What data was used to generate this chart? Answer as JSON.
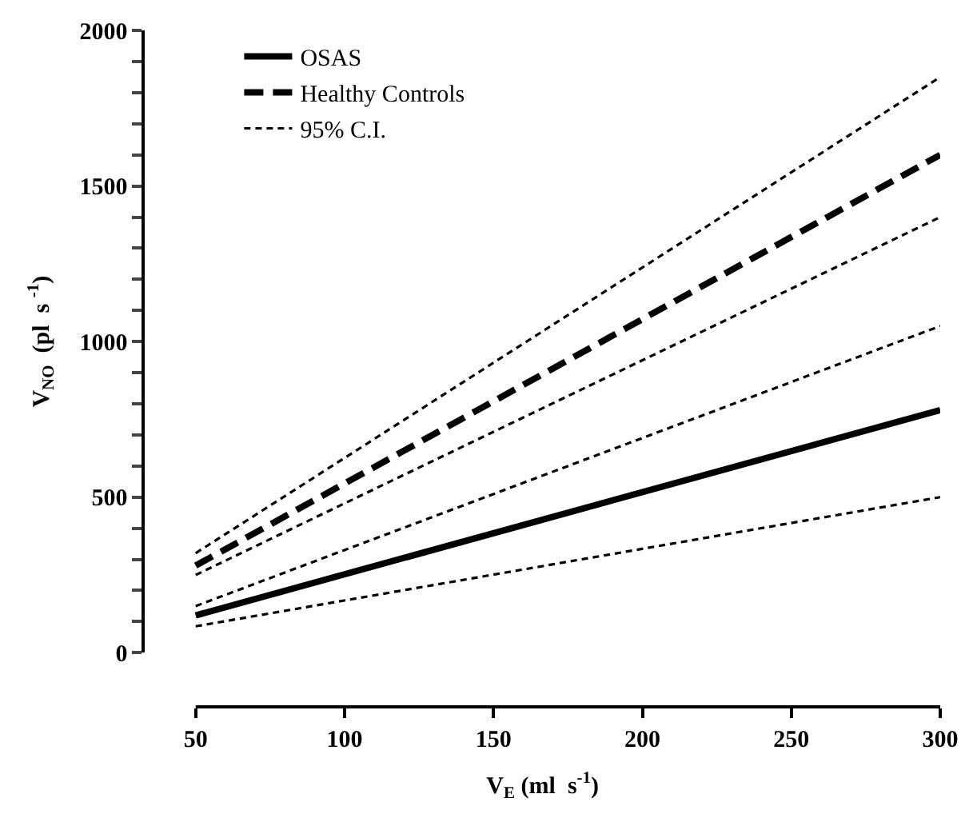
{
  "chart_data": {
    "type": "line",
    "xlabel": "V$_{E}$ (ml  s$^{-1}$)",
    "ylabel": "V$_{NO}$  (pl  s $^{-1}$)",
    "x": [
      50,
      300
    ],
    "xlim": [
      33,
      300
    ],
    "xticks": [
      50,
      100,
      150,
      200,
      250,
      300
    ],
    "ylim": [
      0,
      2000
    ],
    "yticks": [
      0,
      {
        "value": 100,
        "label": null
      },
      {
        "value": 200,
        "label": null
      },
      {
        "value": 300,
        "label": null
      },
      {
        "value": 400,
        "label": null
      },
      500,
      {
        "value": 600,
        "label": null
      },
      {
        "value": 700,
        "label": null
      },
      {
        "value": 800,
        "label": null
      },
      {
        "value": 900,
        "label": null
      },
      1000,
      {
        "value": 1100,
        "label": null
      },
      {
        "value": 1200,
        "label": null
      },
      {
        "value": 1300,
        "label": null
      },
      {
        "value": 1400,
        "label": null
      },
      1500,
      {
        "value": 1600,
        "label": null
      },
      {
        "value": 1700,
        "label": null
      },
      {
        "value": 1800,
        "label": null
      },
      {
        "value": 1900,
        "label": null
      },
      2000
    ],
    "legend": "top left",
    "marker": "none",
    "series": [
      {
        "name": "OSAS",
        "color": "#000000",
        "line_style": "solid",
        "values": [
          120,
          780
        ]
      },
      {
        "name": "Healthy Controls",
        "color": "#000000",
        "line_style": "dashed",
        "values": [
          280,
          1600
        ]
      },
      {
        "name": "95% C.I.",
        "color": "#000000",
        "line_style": "dotted",
        "values": [
          320,
          1850
        ]
      },
      {
        "color": "#000000",
        "line_style": "dotted",
        "values": [
          250,
          1400
        ]
      },
      {
        "color": "#000000",
        "line_style": "dotted",
        "values": [
          150,
          1050
        ]
      },
      {
        "color": "#000000",
        "line_style": "dotted",
        "values": [
          85,
          500
        ]
      }
    ]
  }
}
